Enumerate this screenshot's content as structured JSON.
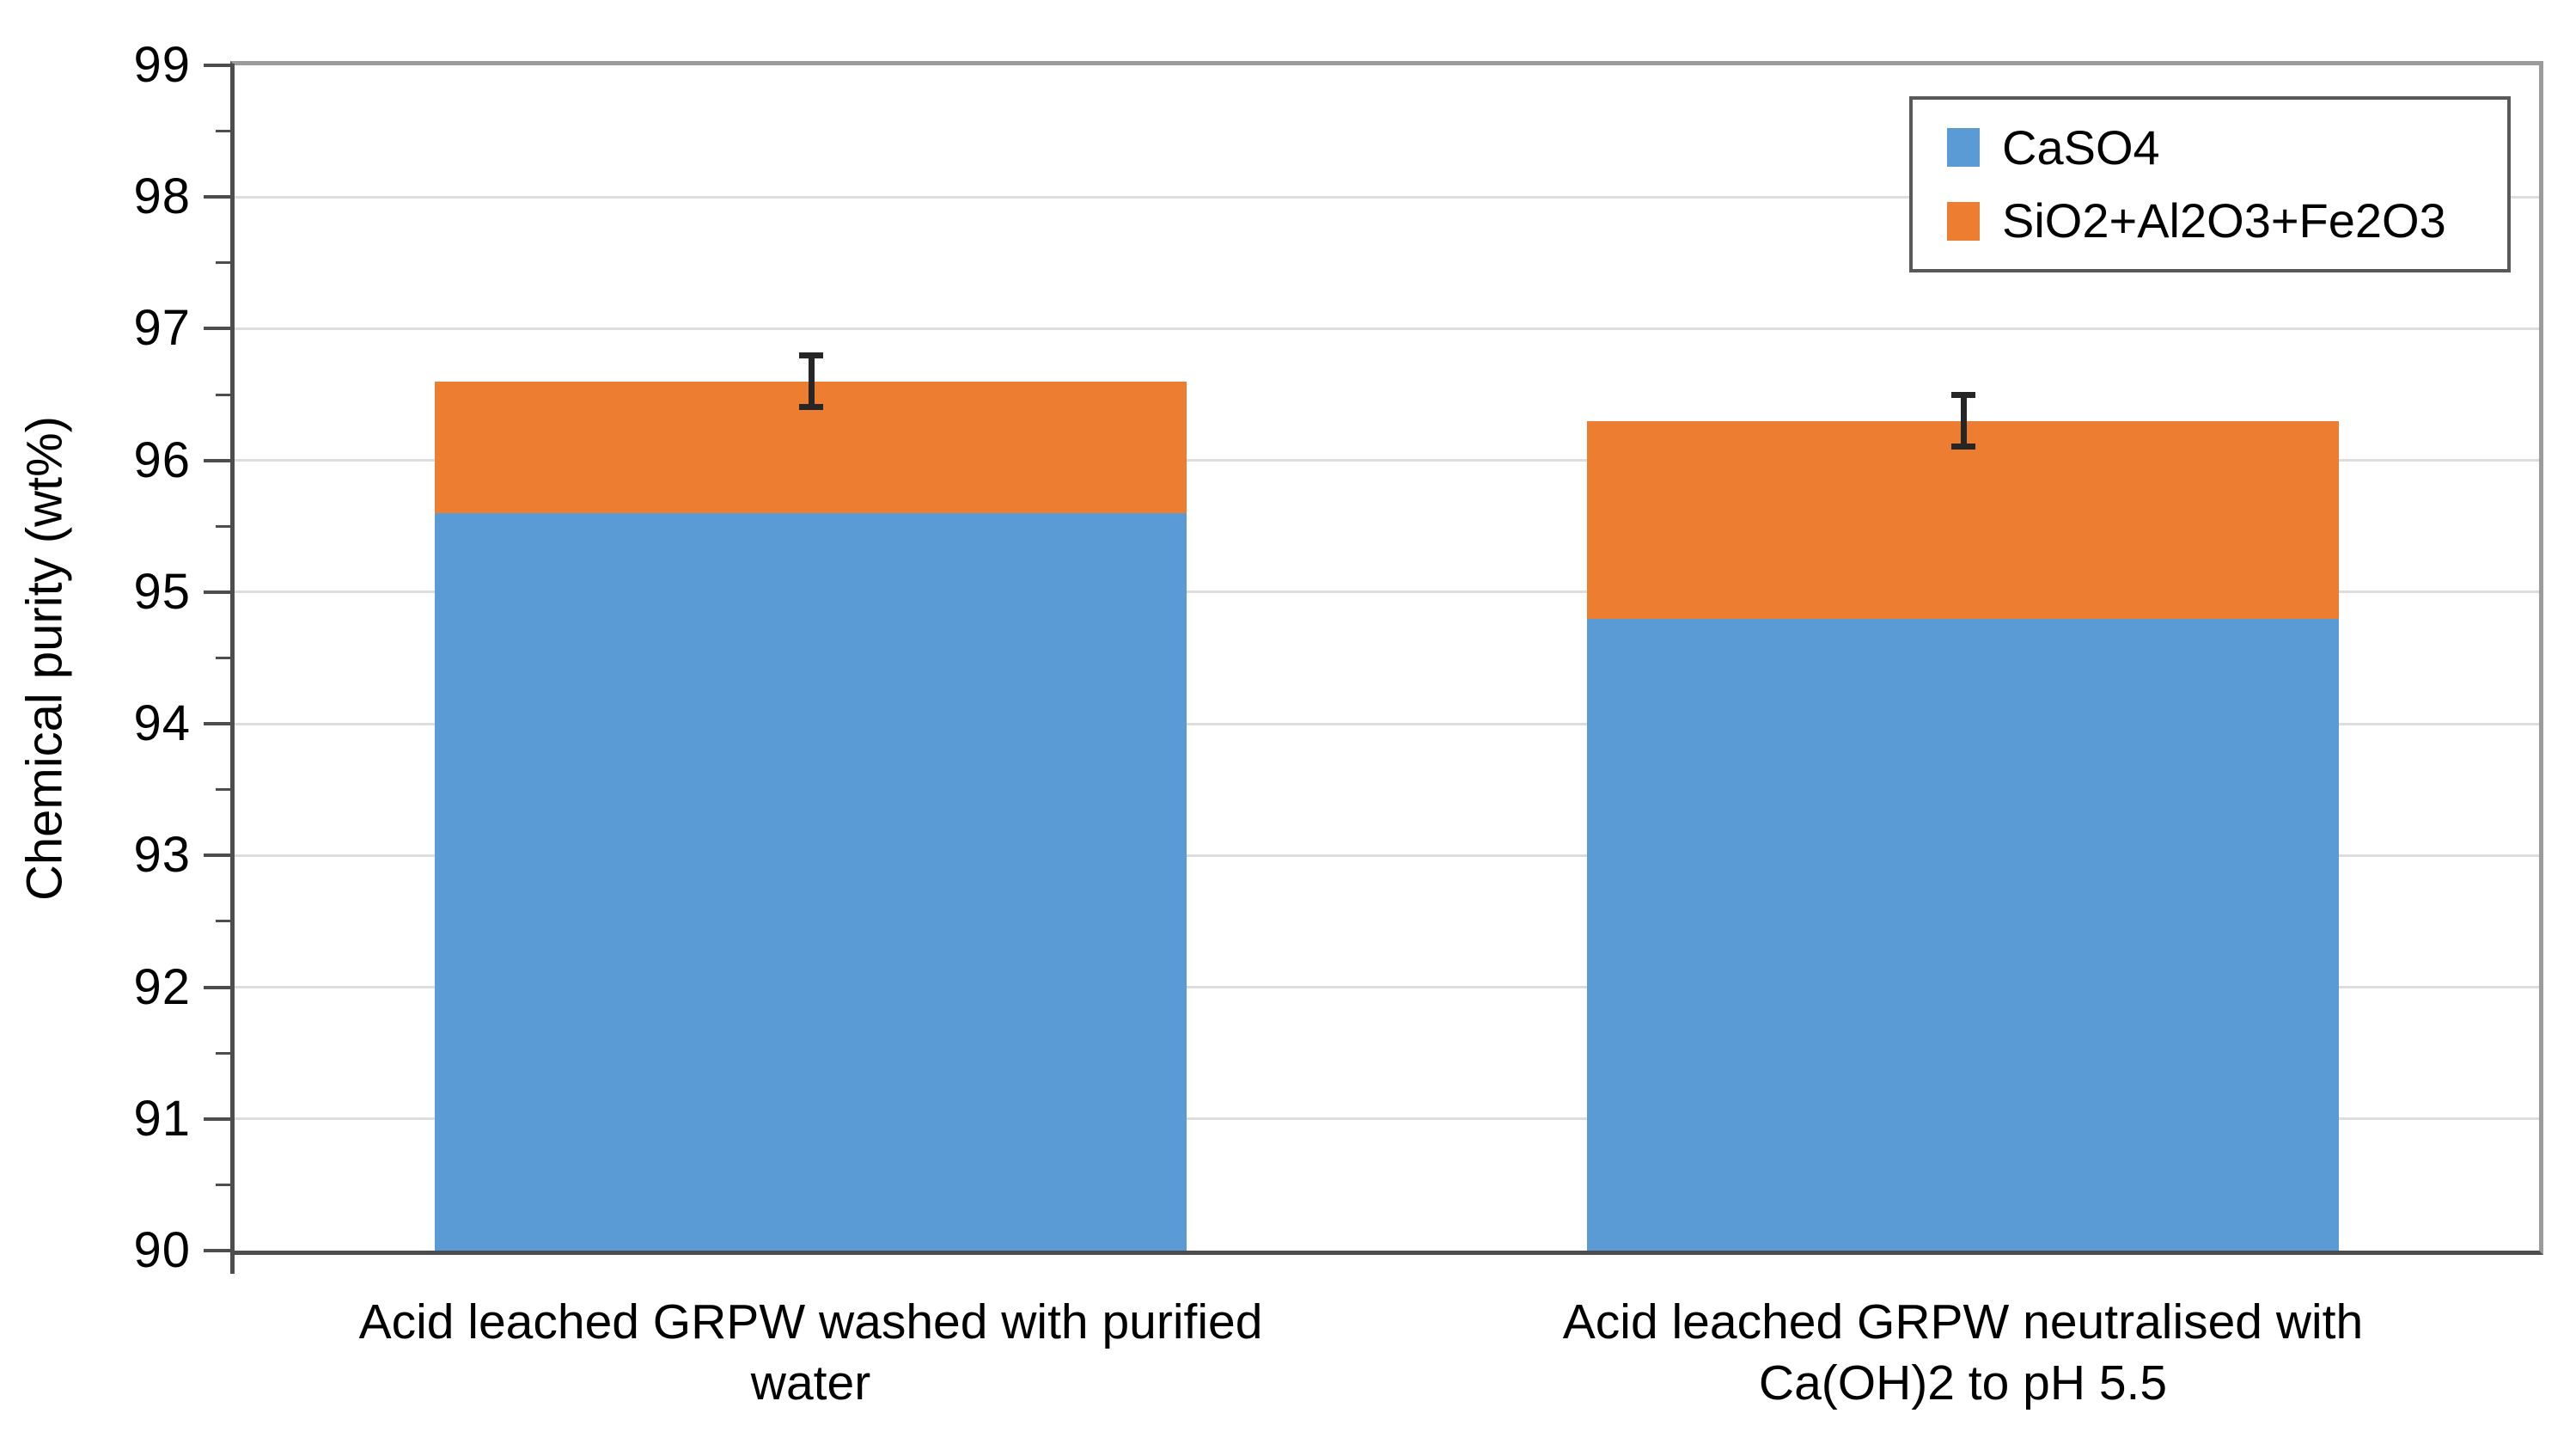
{
  "chart_data": {
    "type": "bar",
    "stacked": true,
    "title": "",
    "ylabel": "Chemical purity (wt%)",
    "xlabel": "",
    "ylim": [
      90,
      99
    ],
    "y_major_step": 1,
    "y_minor_step": 0.5,
    "y_tick_labels": [
      "90",
      "91",
      "92",
      "93",
      "94",
      "95",
      "96",
      "97",
      "98",
      "99"
    ],
    "grid": true,
    "legend_position": "top-right",
    "categories": [
      "Acid leached GRPW washed with purified water",
      "Acid leached GRPW neutralised with Ca(OH)2 to pH 5.5"
    ],
    "category_label_lines": [
      [
        "Acid leached GRPW washed with purified",
        "water"
      ],
      [
        "Acid leached GRPW neutralised with",
        "Ca(OH)2 to pH 5.5"
      ]
    ],
    "series": [
      {
        "name": "CaSO4",
        "color": "#5B9BD5",
        "values": [
          95.6,
          94.8
        ]
      },
      {
        "name": "SiO2+Al2O3+Fe2O3",
        "color": "#ED7D31",
        "values": [
          1.0,
          1.5
        ]
      }
    ],
    "stack_totals": [
      96.6,
      96.3
    ],
    "error_bars": {
      "plus": 0.2,
      "minus": 0.2,
      "color": "#262626"
    }
  },
  "colors": {
    "background": "#FFFFFF",
    "text": "#000000",
    "axis_line": "#4D4D4D",
    "plot_border": "#9B9B9B",
    "gridline": "#DDDDDD",
    "legend_border": "#595959"
  }
}
